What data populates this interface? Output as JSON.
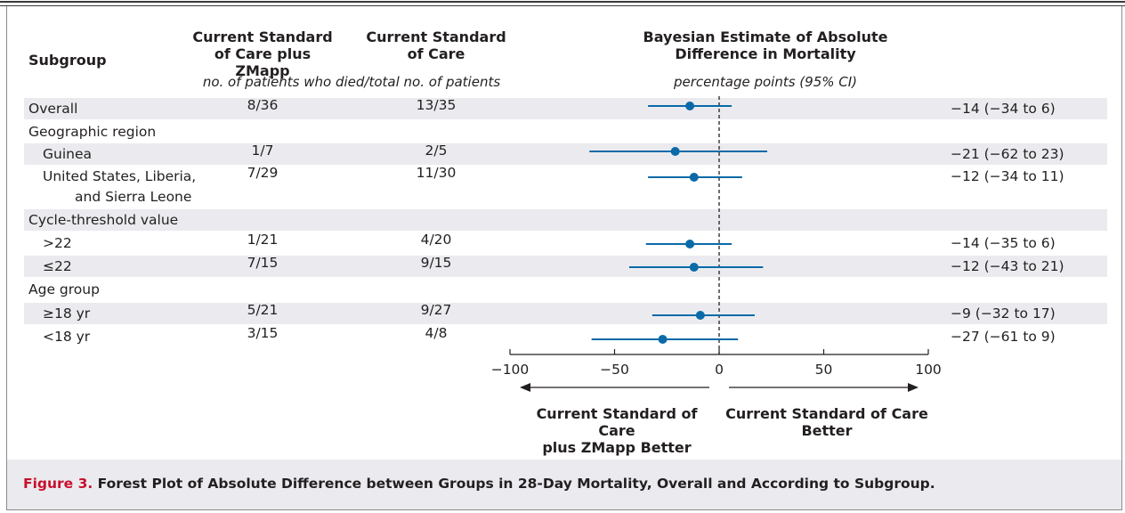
{
  "headers": {
    "subgroup": "Subgroup",
    "zmapp": [
      "Current Standard",
      "of Care plus ZMapp"
    ],
    "soc": [
      "Current Standard",
      "of Care"
    ],
    "estimate": [
      "Bayesian Estimate of Absolute",
      "Difference in Mortality"
    ],
    "patients_subheader": "no. of patients who died/total no. of patients",
    "units_subheader": "percentage points (95% CI)"
  },
  "rows": [
    {
      "label": "Overall",
      "indent": false,
      "zmapp": "8/36",
      "soc": "13/35",
      "ci_text": "−14 (−34 to 6)",
      "shaded": true
    },
    {
      "label": "Geographic region",
      "indent": false,
      "zmapp": "",
      "soc": "",
      "ci_text": "",
      "shaded": false
    },
    {
      "label": "Guinea",
      "indent": true,
      "zmapp": "1/7",
      "soc": "2/5",
      "ci_text": "−21 (−62 to 23)",
      "shaded": true
    },
    {
      "label": "United States, Liberia,",
      "label2": "and Sierra Leone",
      "indent": true,
      "zmapp": "7/29",
      "soc": "11/30",
      "ci_text": "−12 (−34 to 11)",
      "shaded": false
    },
    {
      "label": "Cycle-threshold value",
      "indent": false,
      "zmapp": "",
      "soc": "",
      "ci_text": "",
      "shaded": true
    },
    {
      "label": ">22",
      "indent": true,
      "zmapp": "1/21",
      "soc": "4/20",
      "ci_text": "−14 (−35 to 6)",
      "shaded": false
    },
    {
      "label": "≤22",
      "indent": true,
      "zmapp": "7/15",
      "soc": "9/15",
      "ci_text": "−12 (−43 to 21)",
      "shaded": true
    },
    {
      "label": "Age group",
      "indent": false,
      "zmapp": "",
      "soc": "",
      "ci_text": "",
      "shaded": false
    },
    {
      "label": "≥18 yr",
      "indent": true,
      "zmapp": "5/21",
      "soc": "9/27",
      "ci_text": "−9 (−32 to 17)",
      "shaded": true
    },
    {
      "label": "<18 yr",
      "indent": true,
      "zmapp": "3/15",
      "soc": "4/8",
      "ci_text": "−27 (−61 to 9)",
      "shaded": false
    }
  ],
  "axis": {
    "ticks": [
      "−100",
      "−50",
      "0",
      "50",
      "100"
    ],
    "left_label": [
      "Current Standard of Care",
      "plus ZMapp Better"
    ],
    "right_label": [
      "Current Standard of Care",
      "Better"
    ]
  },
  "caption": {
    "figure_number": "Figure 3.",
    "text": " Forest Plot of Absolute Difference between Groups in 28-Day Mortality, Overall and According to Subgroup."
  },
  "colors": {
    "marker": "#0a6aa8",
    "band": "#ebebef",
    "caption_accent": "#c8102e"
  },
  "chart_data": {
    "type": "forest",
    "xlim": [
      -100,
      100
    ],
    "xticks": [
      -100,
      -50,
      0,
      50,
      100
    ],
    "reference_line": 0,
    "points": [
      {
        "subgroup": "Overall",
        "estimate": -14,
        "lower": -34,
        "upper": 6
      },
      {
        "subgroup": "Guinea",
        "estimate": -21,
        "lower": -62,
        "upper": 23
      },
      {
        "subgroup": "United States, Liberia, and Sierra Leone",
        "estimate": -12,
        "lower": -34,
        "upper": 11
      },
      {
        "subgroup": ">22",
        "estimate": -14,
        "lower": -35,
        "upper": 6
      },
      {
        "subgroup": "≤22",
        "estimate": -12,
        "lower": -43,
        "upper": 21
      },
      {
        "subgroup": "≥18 yr",
        "estimate": -9,
        "lower": -32,
        "upper": 17
      },
      {
        "subgroup": "<18 yr",
        "estimate": -27,
        "lower": -61,
        "upper": 9
      }
    ]
  }
}
